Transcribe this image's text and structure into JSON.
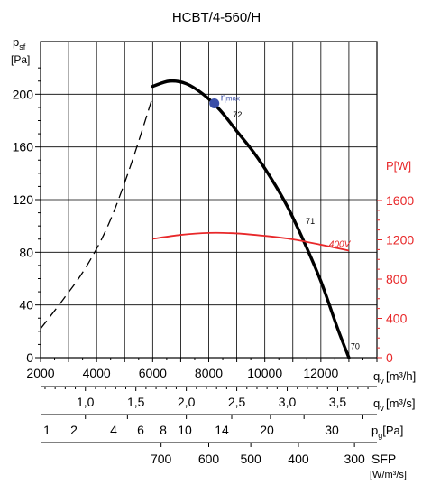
{
  "chart_data": {
    "type": "line",
    "title": "HCBT/4-560/H",
    "y_left": {
      "label_main": "p",
      "label_sub": "sf",
      "unit": "[Pa]",
      "ticks": [
        0,
        40,
        80,
        120,
        160,
        200
      ],
      "range": [
        0,
        240
      ]
    },
    "y_right": {
      "label": "P[W]",
      "ticks": [
        0,
        400,
        800,
        1200,
        1600
      ],
      "range": [
        0,
        1600
      ],
      "color": "#e8282a"
    },
    "x_main": {
      "label_main": "q",
      "label_sub": "v",
      "unit": "[m³/h]",
      "ticks": [
        2000,
        4000,
        6000,
        8000,
        10000,
        12000
      ],
      "range": [
        2000,
        14000
      ]
    },
    "axis_m3s": {
      "label_main": "q",
      "label_sub": "v",
      "unit": "[m³/s]",
      "tick_values": [
        1.0,
        1.5,
        2.0,
        2.5,
        3.0,
        3.5
      ],
      "tick_labels": [
        "1,0",
        "1,5",
        "2,0",
        "2,5",
        "3,0",
        "3,5"
      ]
    },
    "axis_pg": {
      "label_main": "p",
      "label_sub": "g",
      "unit": "[Pa]",
      "ticks": [
        1,
        2,
        4,
        6,
        8,
        10,
        14,
        20,
        30
      ],
      "tick_x_m3h": [
        3600,
        5100,
        7200,
        8820,
        10200,
        11400,
        13500,
        16100,
        19700
      ]
    },
    "axis_sfp": {
      "label": "SFP",
      "unit": "[W/m³/s]",
      "ticks": [
        700,
        600,
        500,
        400,
        300
      ],
      "tick_x_m3h": [
        6300,
        8000,
        9500,
        11200,
        13200
      ]
    },
    "series": [
      {
        "role": "pressure_dashed",
        "color": "#000000",
        "axis": "left",
        "x": [
          2000,
          2800,
          3600,
          4400,
          5200,
          6000
        ],
        "y": [
          22,
          44,
          68,
          100,
          145,
          198
        ]
      },
      {
        "role": "pressure_solid",
        "color": "#000000",
        "axis": "left",
        "x": [
          6000,
          6600,
          7200,
          7800,
          8400,
          9000,
          9600,
          10200,
          10800,
          11400,
          12000,
          12600,
          13000
        ],
        "y": [
          206,
          210,
          208,
          200,
          188,
          172,
          156,
          137,
          115,
          88,
          58,
          22,
          0
        ]
      },
      {
        "role": "power",
        "name": "400V",
        "color": "#e8282a",
        "axis": "right",
        "x": [
          6000,
          7000,
          8000,
          9000,
          10000,
          11000,
          12000,
          13000
        ],
        "y": [
          1210,
          1250,
          1270,
          1265,
          1240,
          1205,
          1150,
          1090
        ]
      }
    ],
    "efficiency_max": {
      "label_main": "η",
      "label_sub": "max",
      "x": 8200,
      "y": 193,
      "color": "#3b4fa8"
    },
    "point_labels": [
      {
        "text": "72",
        "x": 8800,
        "y": 181
      },
      {
        "text": "71",
        "x": 11400,
        "y": 100
      },
      {
        "text": "70",
        "x": 13000,
        "y": 5
      }
    ],
    "grid": true
  }
}
